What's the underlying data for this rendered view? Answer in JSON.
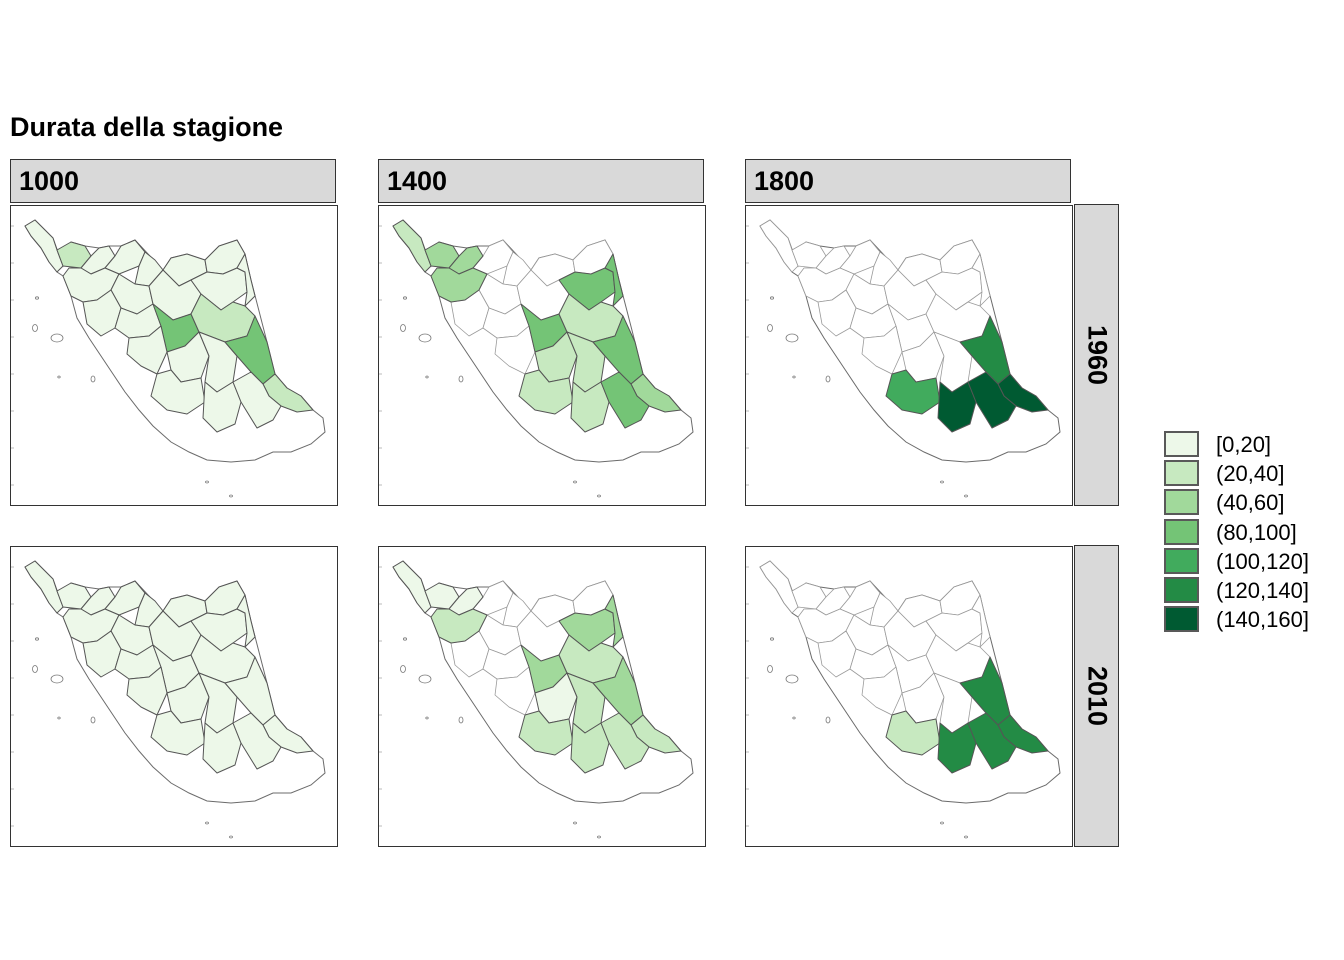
{
  "title": "Durata della stagione",
  "columns": [
    "1000",
    "1400",
    "1800"
  ],
  "rows": [
    "1960",
    "2010"
  ],
  "legend": {
    "items": [
      {
        "label": "[0,20]",
        "color": "#edf8e9"
      },
      {
        "label": "(20,40]",
        "color": "#c7e9c0"
      },
      {
        "label": "(40,60]",
        "color": "#a1d99b"
      },
      {
        "label": "(80,100]",
        "color": "#74c476"
      },
      {
        "label": "(100,120]",
        "color": "#41ab5d"
      },
      {
        "label": "(120,140]",
        "color": "#238b45"
      },
      {
        "label": "(140,160]",
        "color": "#005a32"
      }
    ]
  },
  "panels": [
    {
      "column": "1000",
      "row": "1960",
      "classes": [
        0,
        1,
        0,
        0,
        0,
        0,
        0,
        0,
        0,
        0,
        0,
        0,
        0,
        0,
        3,
        1,
        0,
        0,
        0,
        3,
        1,
        0,
        0,
        0
      ]
    },
    {
      "column": "1400",
      "row": "1960",
      "classes": [
        1,
        2,
        2,
        -1,
        -1,
        -1,
        -1,
        2,
        -1,
        -1,
        3,
        3,
        -1,
        -1,
        3,
        1,
        -1,
        1,
        1,
        3,
        2,
        1,
        1,
        3
      ]
    },
    {
      "column": "1800",
      "row": "1960",
      "classes": [
        -1,
        -1,
        -1,
        -1,
        -1,
        -1,
        -1,
        -1,
        -1,
        -1,
        -1,
        -1,
        -1,
        -1,
        -1,
        -1,
        -1,
        -1,
        -1,
        5,
        6,
        4,
        6,
        6
      ]
    },
    {
      "column": "1000",
      "row": "2010",
      "classes": [
        0,
        0,
        0,
        0,
        0,
        0,
        0,
        0,
        0,
        0,
        0,
        0,
        0,
        0,
        0,
        0,
        0,
        0,
        0,
        0,
        0,
        0,
        0,
        0
      ]
    },
    {
      "column": "1400",
      "row": "2010",
      "classes": [
        0,
        0,
        0,
        -1,
        -1,
        -1,
        -1,
        1,
        -1,
        -1,
        2,
        2,
        -1,
        -1,
        2,
        1,
        -1,
        0,
        1,
        2,
        1,
        1,
        1,
        1
      ]
    },
    {
      "column": "1800",
      "row": "2010",
      "classes": [
        -1,
        -1,
        -1,
        -1,
        -1,
        -1,
        -1,
        -1,
        -1,
        -1,
        -1,
        -1,
        -1,
        -1,
        -1,
        -1,
        -1,
        -1,
        -1,
        5,
        5,
        1,
        5,
        5
      ]
    }
  ]
}
